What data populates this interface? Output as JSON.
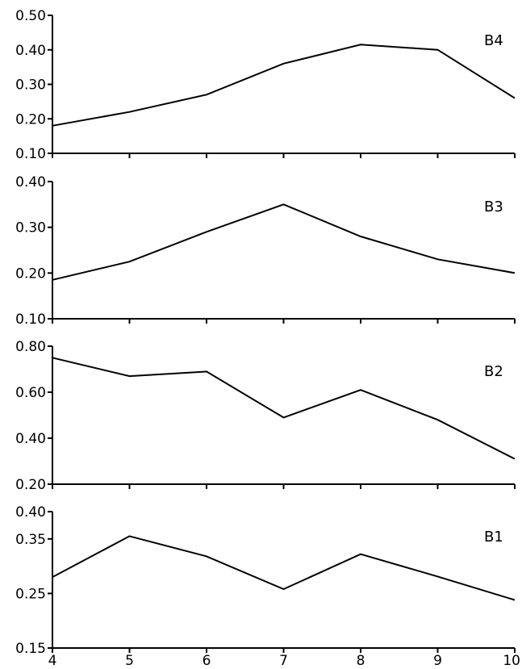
{
  "chart_data": [
    {
      "type": "line",
      "panel_label": "B4",
      "x": [
        4,
        5,
        6,
        7,
        8,
        9,
        10
      ],
      "values": [
        0.18,
        0.22,
        0.27,
        0.36,
        0.415,
        0.4,
        0.26
      ],
      "ylim": [
        0.1,
        0.5
      ],
      "yticks": [
        "0.50",
        "0.40",
        "0.30",
        "0.20",
        "0.10"
      ],
      "ytick_values": [
        0.5,
        0.4,
        0.3,
        0.2,
        0.1
      ]
    },
    {
      "type": "line",
      "panel_label": "B3",
      "x": [
        4,
        5,
        6,
        7,
        8,
        9,
        10
      ],
      "values": [
        0.185,
        0.225,
        0.29,
        0.35,
        0.28,
        0.23,
        0.2
      ],
      "ylim": [
        0.1,
        0.4
      ],
      "yticks": [
        "0.40",
        "0.30",
        "0.20",
        "0.10"
      ],
      "ytick_values": [
        0.4,
        0.3,
        0.2,
        0.1
      ]
    },
    {
      "type": "line",
      "panel_label": "B2",
      "x": [
        4,
        5,
        6,
        7,
        8,
        9,
        10
      ],
      "values": [
        0.75,
        0.67,
        0.69,
        0.49,
        0.61,
        0.48,
        0.31
      ],
      "ylim": [
        0.2,
        0.8
      ],
      "yticks": [
        "0.80",
        "0.60",
        "0.40",
        "0.20"
      ],
      "ytick_values": [
        0.8,
        0.6,
        0.4,
        0.2
      ]
    },
    {
      "type": "line",
      "panel_label": "B1",
      "x": [
        4,
        5,
        6,
        7,
        8,
        9,
        10
      ],
      "values": [
        0.28,
        0.355,
        0.318,
        0.258,
        0.322,
        0.281,
        0.238
      ],
      "ylim": [
        0.15,
        0.4
      ],
      "yticks": [
        "0.40",
        "0.35",
        "0.25",
        "0.15"
      ],
      "ytick_values": [
        0.4,
        0.35,
        0.25,
        0.15
      ]
    }
  ],
  "x_axis": {
    "ticks": [
      "4",
      "5",
      "6",
      "7",
      "8",
      "9",
      "10"
    ],
    "tick_values": [
      4,
      5,
      6,
      7,
      8,
      9,
      10
    ],
    "xlim": [
      4,
      10
    ]
  }
}
